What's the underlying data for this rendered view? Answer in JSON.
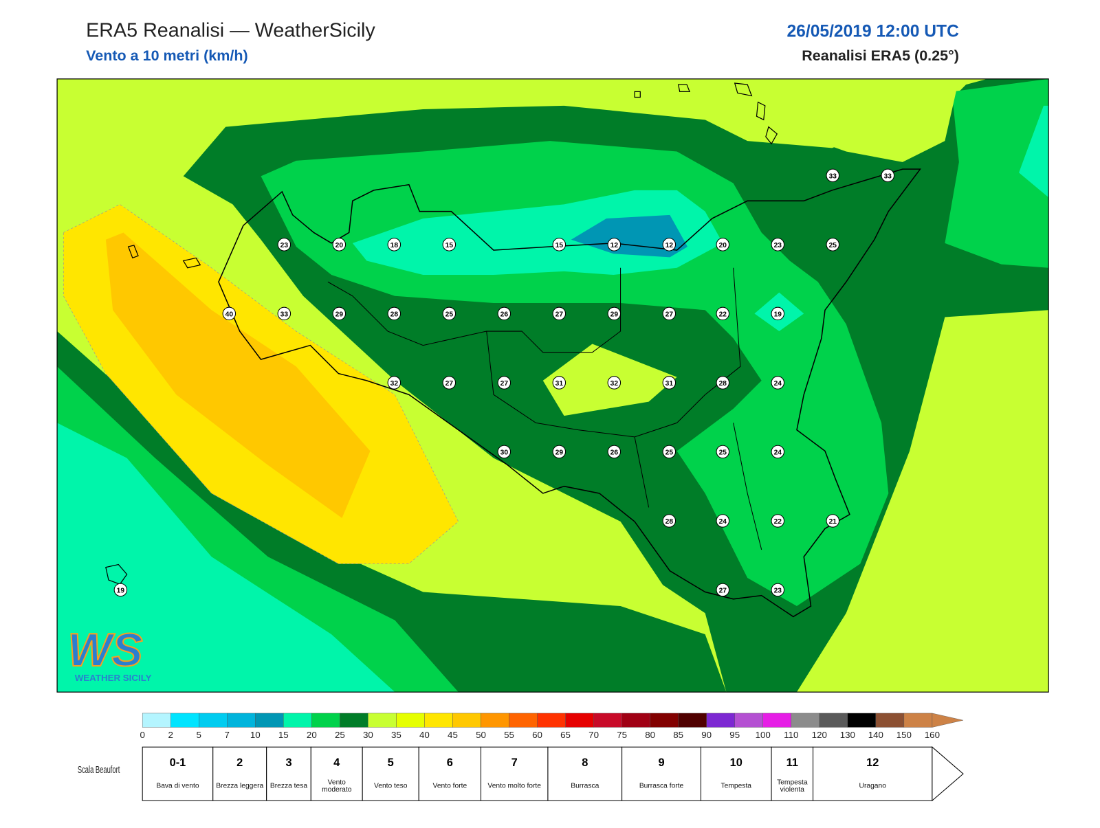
{
  "header": {
    "title": "ERA5 Reanalisi — WeatherSicily",
    "subtitle": "Vento a 10 metri (km/h)",
    "datetime": "26/05/2019 12:00 UTC",
    "source": "Reanalisi ERA5 (0.25°)"
  },
  "logo": {
    "mark": "WS",
    "text": "WEATHER SICILY"
  },
  "stations": [
    23,
    20,
    18,
    15,
    15,
    12,
    12,
    20,
    23,
    25,
    33,
    33,
    40,
    33,
    29,
    28,
    25,
    26,
    27,
    29,
    27,
    22,
    19,
    32,
    27,
    27,
    31,
    32,
    31,
    28,
    24,
    30,
    29,
    26,
    25,
    25,
    24,
    28,
    24,
    22,
    21,
    27,
    23,
    19
  ],
  "colorbar": {
    "labels": [
      0,
      2,
      5,
      7,
      10,
      15,
      20,
      25,
      30,
      35,
      40,
      45,
      50,
      55,
      60,
      65,
      70,
      75,
      80,
      85,
      90,
      95,
      100,
      110,
      120,
      130,
      140,
      150,
      160
    ],
    "colors": [
      "#b4f5ff",
      "#00e4ff",
      "#00ccf0",
      "#00b4dc",
      "#0096b4",
      "#00f5aa",
      "#00d24b",
      "#007d28",
      "#c8ff32",
      "#e6ff00",
      "#ffe600",
      "#ffc800",
      "#ff9600",
      "#ff6400",
      "#ff3200",
      "#e60000",
      "#c80a28",
      "#a00014",
      "#820000",
      "#500000",
      "#7d28d2",
      "#b450d2",
      "#e61ee6",
      "#8c8c8c",
      "#5a5a5a",
      "#000000",
      "#8c5032",
      "#cd8246"
    ]
  },
  "beaufort": {
    "label": "Scala Beaufort",
    "entries": [
      {
        "force": "0-1",
        "desc": "Bava di vento"
      },
      {
        "force": "2",
        "desc": "Brezza leggera"
      },
      {
        "force": "3",
        "desc": "Brezza tesa"
      },
      {
        "force": "4",
        "desc": "Vento moderato"
      },
      {
        "force": "5",
        "desc": "Vento teso"
      },
      {
        "force": "6",
        "desc": "Vento forte"
      },
      {
        "force": "7",
        "desc": "Vento molto forte"
      },
      {
        "force": "8",
        "desc": "Burrasca"
      },
      {
        "force": "9",
        "desc": "Burrasca forte"
      },
      {
        "force": "10",
        "desc": "Tempesta"
      },
      {
        "force": "11",
        "desc": "Tempesta violenta"
      },
      {
        "force": "12",
        "desc": "Uragano"
      }
    ]
  }
}
